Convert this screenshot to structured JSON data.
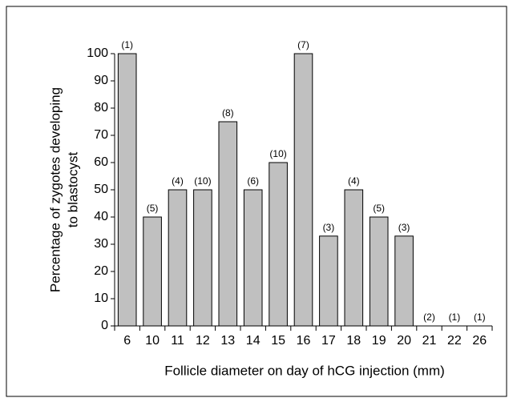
{
  "chart_data": {
    "type": "bar",
    "xlabel": "Follicle diameter on day of hCG injection (mm)",
    "ylabel": [
      "Percentage of zygotes developing",
      "to blastocyst"
    ],
    "categories": [
      "6",
      "10",
      "11",
      "12",
      "13",
      "14",
      "15",
      "16",
      "17",
      "18",
      "19",
      "20",
      "21",
      "22",
      "26"
    ],
    "values": [
      100,
      40,
      50,
      50,
      75,
      50,
      60,
      100,
      33,
      50,
      40,
      33,
      0,
      0,
      0
    ],
    "annotations": [
      "(1)",
      "(5)",
      "(4)",
      "(10)",
      "(8)",
      "(6)",
      "(10)",
      "(7)",
      "(3)",
      "(4)",
      "(5)",
      "(3)",
      "(2)",
      "(1)",
      "(1)"
    ],
    "color": "#c0c0c0",
    "ylim": [
      0,
      100
    ],
    "yticks": [
      0,
      10,
      20,
      30,
      40,
      50,
      60,
      70,
      80,
      90,
      100
    ]
  }
}
